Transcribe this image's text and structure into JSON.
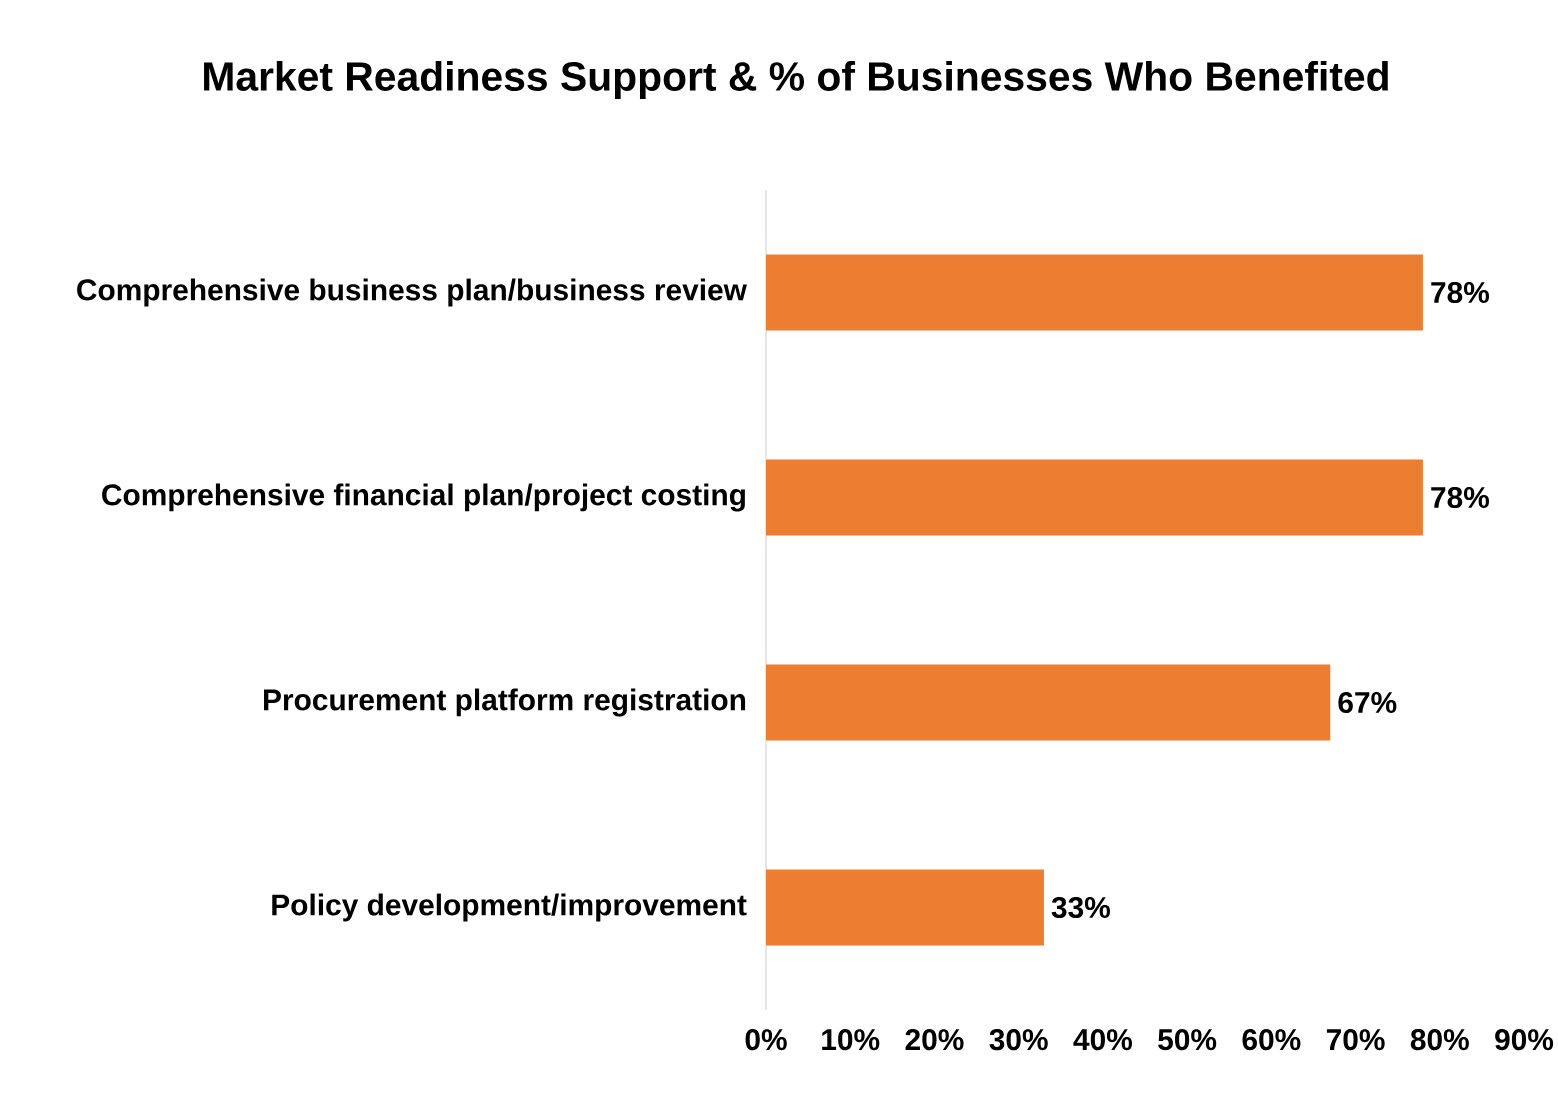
{
  "chart_data": {
    "type": "bar",
    "orientation": "horizontal",
    "title": "Market Readiness Support & % of Businesses Who Benefited",
    "categories": [
      "Comprehensive business plan/business review",
      "Comprehensive financial plan/project costing",
      "Procurement platform registration",
      "Policy development/improvement"
    ],
    "values": [
      78,
      78,
      67,
      33
    ],
    "value_labels": [
      "78%",
      "78%",
      "67%",
      "33%"
    ],
    "color": "#ed7d31",
    "xlim": [
      0,
      90
    ],
    "xticks": [
      {
        "value": 0,
        "label": "0%"
      },
      {
        "value": 10,
        "label": "10%"
      },
      {
        "value": 20,
        "label": "20%"
      },
      {
        "value": 30,
        "label": "30%"
      },
      {
        "value": 40,
        "label": "40%"
      },
      {
        "value": 50,
        "label": "50%"
      },
      {
        "value": 60,
        "label": "60%"
      },
      {
        "value": 70,
        "label": "70%"
      },
      {
        "value": 80,
        "label": "80%"
      },
      {
        "value": 90,
        "label": "90%"
      }
    ],
    "grid": false
  }
}
